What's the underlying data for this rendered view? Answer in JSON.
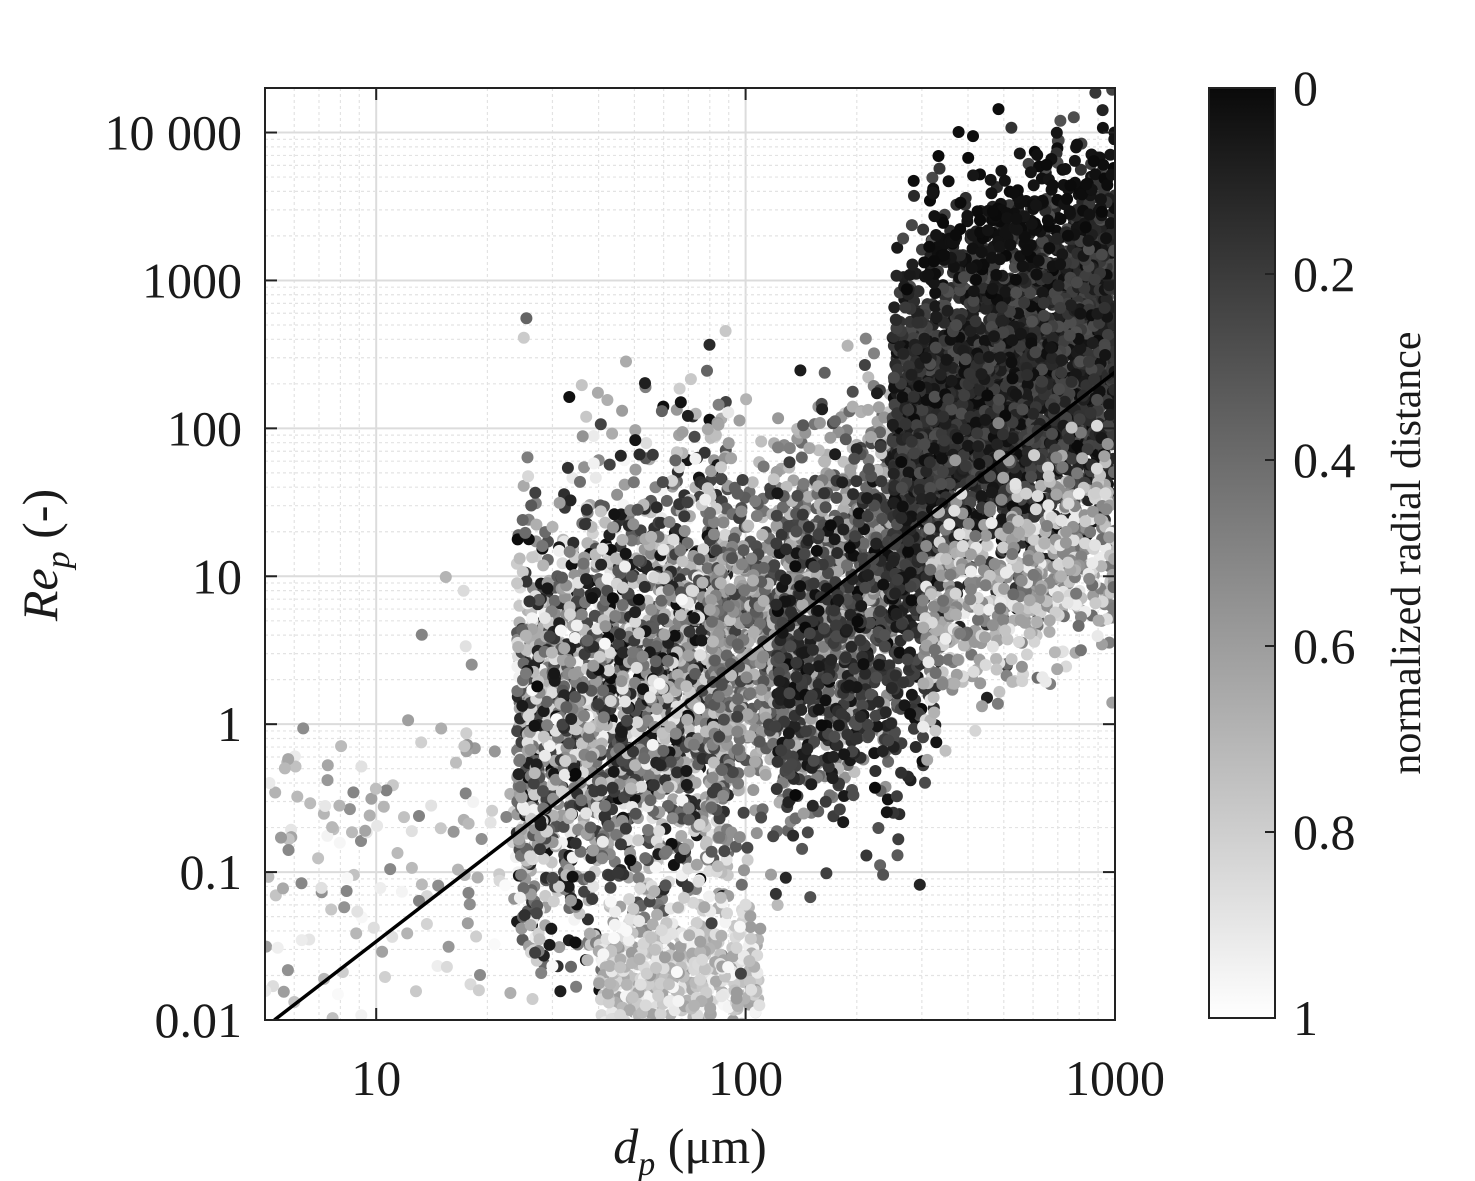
{
  "chart_data": {
    "type": "scatter",
    "xscale": "log",
    "yscale": "log",
    "xlim": [
      5,
      1000
    ],
    "ylim": [
      0.01,
      20000
    ],
    "grid": "on",
    "xticks": [
      {
        "value": 10,
        "label": "10"
      },
      {
        "value": 100,
        "label": "100"
      },
      {
        "value": 1000,
        "label": "1000"
      }
    ],
    "yticks": [
      {
        "value": 0.01,
        "label": "0.01"
      },
      {
        "value": 0.1,
        "label": "0.1"
      },
      {
        "value": 1,
        "label": "1"
      },
      {
        "value": 10,
        "label": "10"
      },
      {
        "value": 100,
        "label": "100"
      },
      {
        "value": 1000,
        "label": "1000"
      },
      {
        "value": 10000,
        "label": "10 000"
      }
    ],
    "xlabel": {
      "symbol": "d",
      "subscript": "p",
      "unit": " (μm)"
    },
    "ylabel": {
      "symbol": "Re",
      "subscript": "p",
      "unit": " (-)"
    },
    "colorbar": {
      "label": "normalized radial distance",
      "range": [
        0,
        1
      ],
      "colormap": "gray-reversed",
      "color_at_0": "#0a0a0a",
      "color_at_1": "#ffffff",
      "ticks": [
        {
          "value": 0,
          "label": "0"
        },
        {
          "value": 0.2,
          "label": "0.2"
        },
        {
          "value": 0.4,
          "label": "0.4"
        },
        {
          "value": 0.6,
          "label": "0.6"
        },
        {
          "value": 0.8,
          "label": "0.8"
        },
        {
          "value": 1,
          "label": "1"
        }
      ]
    },
    "fit_line": {
      "points": [
        [
          5.3,
          0.01
        ],
        [
          1000,
          240
        ]
      ],
      "color": "#000000"
    },
    "clusters": [
      {
        "x_range": [
          5,
          24
        ],
        "log_y_center": -1.0,
        "log_y_spread": 0.6,
        "slope": 0.9,
        "color_range": [
          0.5,
          1.0
        ],
        "approx_count": 140
      },
      {
        "x_range": [
          24,
          90
        ],
        "log_y_center": 0.2,
        "log_y_spread": 0.75,
        "slope": 1.0,
        "color_range": [
          0.0,
          1.0
        ],
        "approx_count": 2600
      },
      {
        "x_range": [
          40,
          110
        ],
        "log_y_center": -1.7,
        "log_y_spread": 0.25,
        "slope": 0.0,
        "color_range": [
          0.6,
          1.0
        ],
        "approx_count": 500
      },
      {
        "x_range": [
          80,
          260
        ],
        "log_y_center": 0.7,
        "log_y_spread": 0.6,
        "slope": 1.5,
        "color_range": [
          0.2,
          0.8
        ],
        "approx_count": 1400
      },
      {
        "x_range": [
          120,
          330
        ],
        "log_y_center": 0.6,
        "log_y_spread": 0.65,
        "slope": 1.6,
        "color_range": [
          0.0,
          0.3
        ],
        "approx_count": 600
      },
      {
        "x_range": [
          250,
          1000
        ],
        "log_y_center": 2.25,
        "log_y_spread": 0.55,
        "slope": 1.3,
        "color_range": [
          0.0,
          0.3
        ],
        "approx_count": 3600
      },
      {
        "x_range": [
          300,
          1000
        ],
        "log_y_center": 0.95,
        "log_y_spread": 0.35,
        "slope": 1.2,
        "color_range": [
          0.4,
          0.95
        ],
        "approx_count": 600
      },
      {
        "x_range": [
          300,
          1000
        ],
        "log_y_center": 3.45,
        "log_y_spread": 0.2,
        "slope": 1.0,
        "color_range": [
          0.0,
          0.05
        ],
        "approx_count": 180
      }
    ]
  }
}
